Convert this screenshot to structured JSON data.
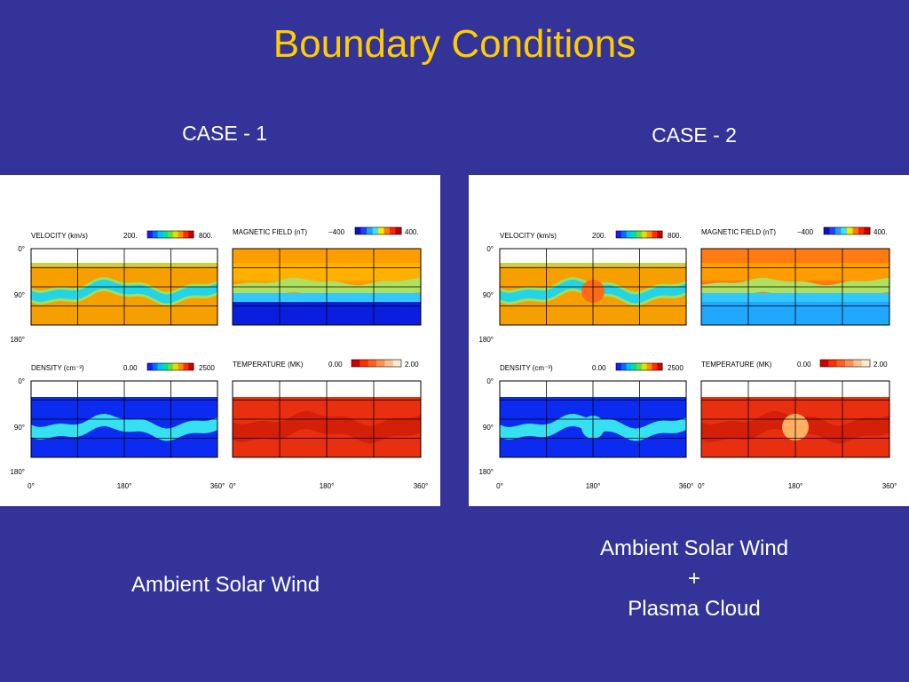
{
  "slide": {
    "title": "Boundary Conditions"
  },
  "cases": [
    {
      "label": "CASE - 1",
      "caption_lines": [
        "Ambient Solar Wind"
      ],
      "cloud": false
    },
    {
      "label": "CASE - 2",
      "caption_lines": [
        "Ambient Solar Wind",
        "+",
        "Plasma Cloud"
      ],
      "cloud": true
    }
  ],
  "plots": {
    "velocity": {
      "label": "VELOCITY (km/s)",
      "min": "200.",
      "max": "800."
    },
    "magnetic": {
      "label": "MAGNETIC FIELD (nT)",
      "min": "−400",
      "max": "400."
    },
    "density": {
      "label": "DENSITY (cm⁻³)",
      "min": "0.00",
      "max": "2500"
    },
    "temperature": {
      "label": "TEMPERATURE (MK)",
      "min": "0.00",
      "max": "2.00"
    }
  },
  "axes": {
    "y_ticks": [
      "0°",
      "90°",
      "180°"
    ],
    "x_ticks": [
      "0°",
      "180°",
      "360°"
    ]
  },
  "colors": {
    "background": "#333399",
    "title": "#ffcc00",
    "velocity_bg": "#f6a000",
    "velocity_stream": "#22d4e6",
    "magnetic_top": "#ff9c00",
    "magnetic_bottom": "#0a1ee0",
    "density_bg": "#0b2cf0",
    "density_stream": "#35e0f0",
    "temperature_bg": "#e83010",
    "cloud_hot": "#ff6a1a",
    "cloud_temp": "#ffb060"
  }
}
